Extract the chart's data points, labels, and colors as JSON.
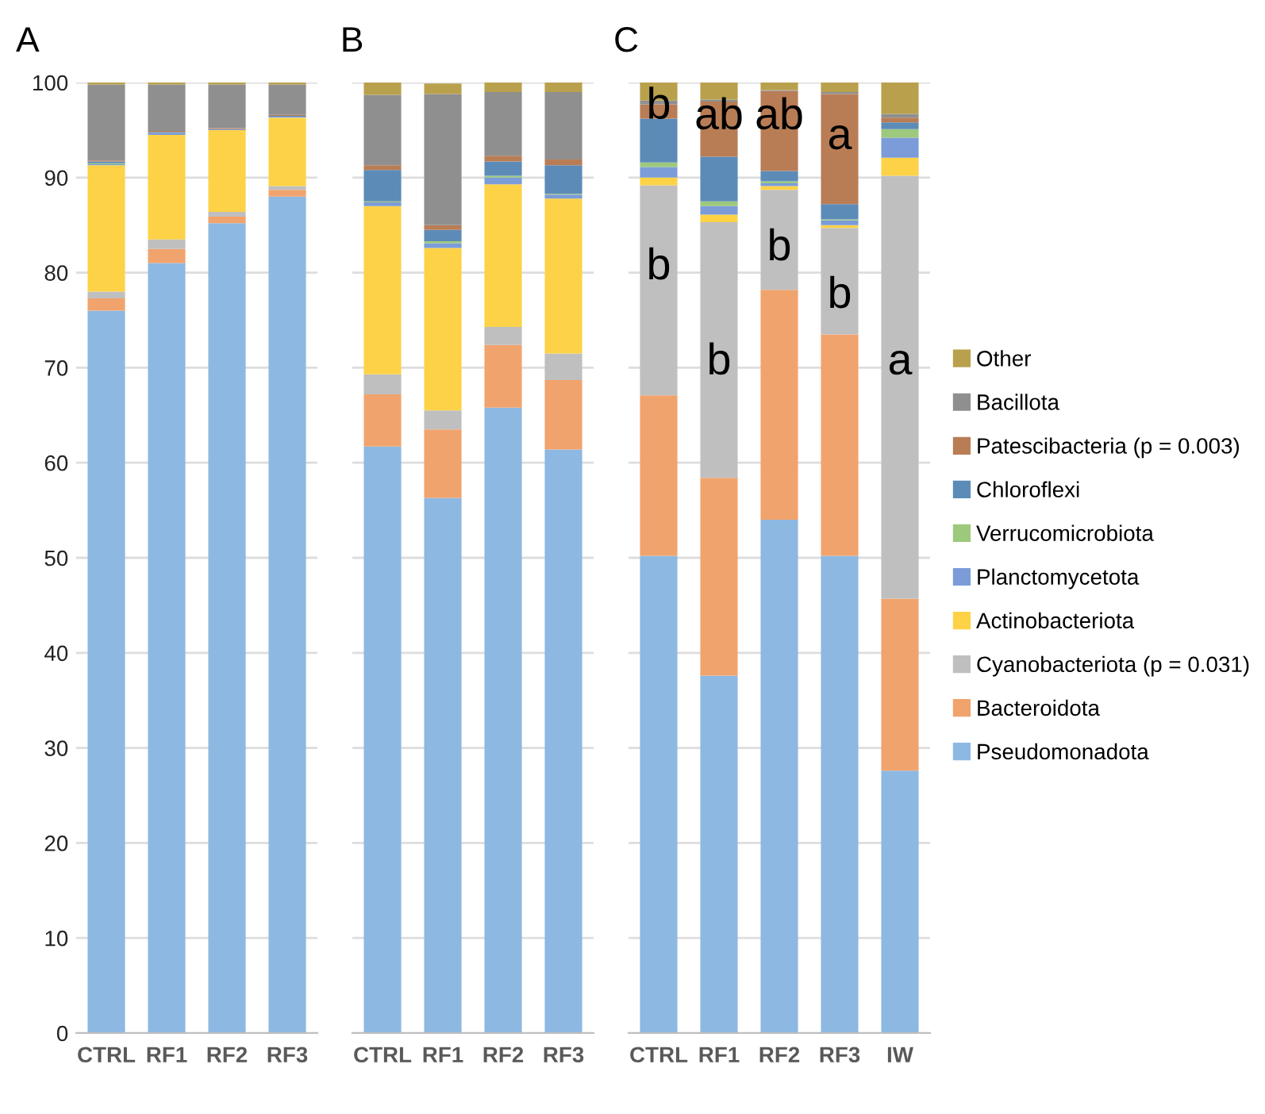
{
  "chart_data": [
    {
      "type": "bar",
      "title": "A",
      "stacked": true,
      "grid": "y",
      "legend": "right",
      "ylim": [
        0,
        100
      ],
      "yticks": [
        0,
        10,
        20,
        30,
        40,
        50,
        60,
        70,
        80,
        90,
        100
      ],
      "categories": [
        "CTRL",
        "RF1",
        "RF2",
        "RF3"
      ],
      "series": [
        {
          "name": "Pseudomonadota",
          "color": "#8db8e2",
          "values": [
            76.0,
            81.0,
            85.2,
            88.0
          ]
        },
        {
          "name": "Bacteroidota",
          "color": "#f1a36d",
          "values": [
            1.3,
            1.5,
            0.7,
            0.7
          ]
        },
        {
          "name": "Cyanobacteriota (p = 0.031)",
          "color": "#bfbfbf",
          "values": [
            0.7,
            1.0,
            0.5,
            0.4
          ]
        },
        {
          "name": "Actinobacteriota",
          "color": "#fdd247",
          "values": [
            13.3,
            11.0,
            8.6,
            7.2
          ]
        },
        {
          "name": "Planctomycetota",
          "color": "#7b9cd8",
          "values": [
            0.1,
            0.2,
            0.1,
            0.1
          ]
        },
        {
          "name": "Verrucomicrobiota",
          "color": "#9dc97d",
          "values": [
            0.1,
            0.0,
            0.0,
            0.0
          ]
        },
        {
          "name": "Chloroflexi",
          "color": "#5c8bb8",
          "values": [
            0.2,
            0.1,
            0.0,
            0.1
          ]
        },
        {
          "name": "Patescibacteria (p = 0.003)",
          "color": "#b97d56",
          "values": [
            0.1,
            0.1,
            0.1,
            0.1
          ]
        },
        {
          "name": "Bacillota",
          "color": "#8f8f8f",
          "values": [
            8.0,
            4.9,
            4.6,
            3.2
          ]
        },
        {
          "name": "Other",
          "color": "#b9a04c",
          "values": [
            0.2,
            0.2,
            0.2,
            0.2
          ]
        }
      ]
    },
    {
      "type": "bar",
      "title": "B",
      "stacked": true,
      "grid": "y",
      "tick_labels": "x",
      "ylim": [
        0,
        100
      ],
      "yticks": [
        0,
        10,
        20,
        30,
        40,
        50,
        60,
        70,
        80,
        90,
        100
      ],
      "categories": [
        "CTRL",
        "RF1",
        "RF2",
        "RF3"
      ],
      "series": [
        {
          "color": "#8db8e2",
          "values": [
            61.7,
            56.3,
            65.8,
            61.4
          ]
        },
        {
          "color": "#f1a36d",
          "values": [
            5.5,
            7.2,
            6.6,
            7.3
          ]
        },
        {
          "color": "#bfbfbf",
          "values": [
            2.1,
            2.0,
            1.9,
            2.8
          ]
        },
        {
          "color": "#fdd247",
          "values": [
            17.7,
            17.1,
            15.0,
            16.3
          ]
        },
        {
          "color": "#7b9cd8",
          "values": [
            0.4,
            0.5,
            0.7,
            0.4
          ]
        },
        {
          "color": "#9dc97d",
          "values": [
            0.1,
            0.2,
            0.2,
            0.1
          ]
        },
        {
          "color": "#5c8bb8",
          "values": [
            3.3,
            1.2,
            1.5,
            3.0
          ]
        },
        {
          "color": "#b97d56",
          "values": [
            0.5,
            0.5,
            0.6,
            0.6
          ]
        },
        {
          "color": "#8f8f8f",
          "values": [
            7.4,
            13.8,
            6.7,
            7.1
          ]
        },
        {
          "color": "#b9a04c",
          "values": [
            1.3,
            1.1,
            1.0,
            1.0
          ]
        }
      ]
    },
    {
      "type": "bar",
      "title": "C",
      "stacked": true,
      "grid": "y",
      "tick_labels": "x",
      "ylim": [
        0,
        100
      ],
      "yticks": [
        0,
        10,
        20,
        30,
        40,
        50,
        60,
        70,
        80,
        90,
        100
      ],
      "categories": [
        "CTRL",
        "RF1",
        "RF2",
        "RF3",
        "IW"
      ],
      "series": [
        {
          "color": "#8db8e2",
          "values": [
            50.2,
            37.6,
            54.0,
            50.2,
            27.6
          ]
        },
        {
          "color": "#f1a36d",
          "values": [
            16.9,
            20.8,
            24.2,
            23.3,
            18.1
          ]
        },
        {
          "color": "#bfbfbf",
          "values": [
            22.1,
            26.9,
            10.5,
            11.2,
            44.5
          ]
        },
        {
          "color": "#fdd247",
          "values": [
            0.8,
            0.8,
            0.4,
            0.3,
            1.9
          ]
        },
        {
          "color": "#7b9cd8",
          "values": [
            1.1,
            0.9,
            0.3,
            0.5,
            2.1
          ]
        },
        {
          "color": "#9dc97d",
          "values": [
            0.5,
            0.5,
            0.2,
            0.1,
            0.9
          ]
        },
        {
          "color": "#5c8bb8",
          "values": [
            4.6,
            4.7,
            1.1,
            1.6,
            0.7
          ]
        },
        {
          "color": "#b97d56",
          "values": [
            1.5,
            5.8,
            8.4,
            11.6,
            0.5
          ]
        },
        {
          "color": "#8f8f8f",
          "values": [
            0.4,
            0.2,
            0.1,
            0.2,
            0.4
          ]
        },
        {
          "color": "#b9a04c",
          "values": [
            1.9,
            1.8,
            0.8,
            1.0,
            3.3
          ]
        }
      ],
      "annotations": [
        "b",
        "ab",
        "ab",
        "a",
        "b",
        "b",
        "b",
        "b",
        "a"
      ]
    }
  ]
}
